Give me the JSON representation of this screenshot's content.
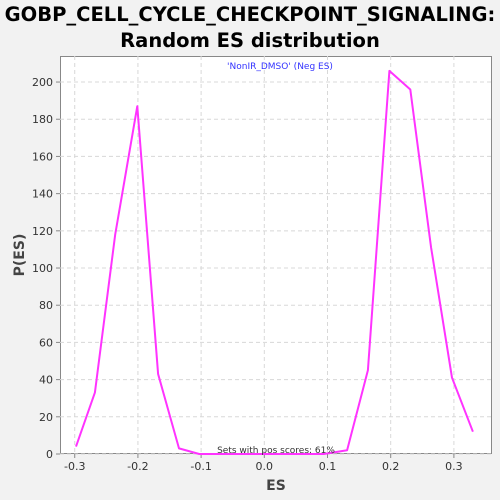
{
  "title_line1": "GOBP_CELL_CYCLE_CHECKPOINT_SIGNALING:",
  "title_line2": "Random ES distribution",
  "chart_data": {
    "type": "line",
    "title": "GOBP_CELL_CYCLE_CHECKPOINT_SIGNALING: Random ES distribution",
    "xlabel": "ES",
    "ylabel": "P(ES)",
    "xlim": [
      -0.3233,
      0.3603
    ],
    "ylim": [
      0,
      214
    ],
    "xticks": [
      -0.3,
      -0.2,
      -0.1,
      0.0,
      0.1,
      0.2,
      0.3
    ],
    "xtick_labels": [
      "-0.3",
      "-0.2",
      "-0.1",
      "0.0",
      "0.1",
      "0.2",
      "0.3"
    ],
    "yticks": [
      0,
      20,
      40,
      60,
      80,
      100,
      120,
      140,
      160,
      180,
      200
    ],
    "ytick_labels": [
      "0",
      "20",
      "40",
      "60",
      "80",
      "100",
      "120",
      "140",
      "160",
      "180",
      "200"
    ],
    "grid": true,
    "legend_position": "top-center",
    "series": [
      {
        "name": "'NonIR_DMSO' (Neg ES)",
        "color": "#ff33ff",
        "x": [
          -0.298,
          -0.268,
          -0.236,
          -0.201,
          -0.168,
          -0.135,
          -0.103,
          -0.07,
          -0.037,
          -0.004,
          0.028,
          0.061,
          0.094,
          0.131,
          0.164,
          0.198,
          0.231,
          0.264,
          0.297,
          0.33
        ],
        "y": [
          4,
          33,
          118,
          187,
          43,
          3,
          0,
          0,
          0,
          0,
          0,
          0,
          0,
          2,
          45,
          206,
          196,
          111,
          41,
          12
        ]
      }
    ],
    "annotation": "Sets with pos scores: 61%",
    "colors": {
      "line": "#ff33ff",
      "legend_text": "#3333ff",
      "grid": "#d8d8d8"
    }
  }
}
